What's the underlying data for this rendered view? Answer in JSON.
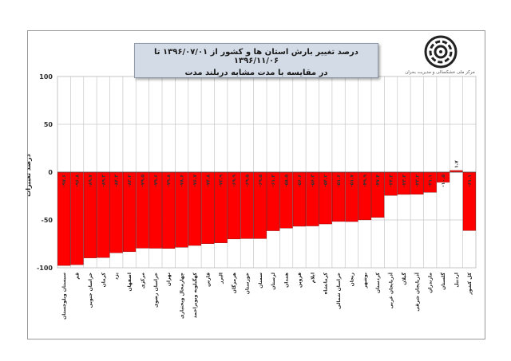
{
  "title": {
    "line1": "درصد تغییر بارش استان ها و کشور از  ۱۳۹۶/۰۷/۰۱ تا ۱۳۹۶/۱۱/۰۶",
    "line2": "در مقایسه با مدت مشابه دربلند مدت"
  },
  "logo_text": "مرکز ملی خشکسالی و مدیریت بحران",
  "chart_data": {
    "type": "bar",
    "title": "درصد تغییر بارش استان ها و کشور از  ۱۳۹۶/۰۷/۰۱ تا ۱۳۹۶/۱۱/۰۶ در مقایسه با مدت مشابه دربلند مدت",
    "xlabel": "",
    "ylabel": "درصد تغییرات",
    "ylim": [
      -100,
      100
    ],
    "yticks": [
      100,
      50,
      0,
      -50,
      -100
    ],
    "grid": true,
    "bar_color": "#ff0000",
    "categories": [
      "سیستان وبلوچستان",
      "قم",
      "خراسان جنوبی",
      "کرمان",
      "یزد",
      "اصفهان",
      "مرکزی",
      "خراسان رضوی",
      "تهران",
      "چهارمحال وبختیاری",
      "کهگیلویه وبویراحمد",
      "فارس",
      "البرز",
      "هرمزگان",
      "خوزستان",
      "سمنان",
      "لرستان",
      "همدان",
      "قزوین",
      "ایلام",
      "کرمانشاه",
      "خراسان شمالی",
      "زنجان",
      "بوشهر",
      "کردستان",
      "آذربایجان غربی",
      "گیلان",
      "آذربایجان شرقی",
      "مازندران",
      "گلستان",
      "اردبیل",
      "کل کشور"
    ],
    "values": [
      -97.6,
      -96.8,
      -89.7,
      -89.3,
      -84.3,
      -83.2,
      -79.5,
      -79.6,
      -79.8,
      -78.6,
      -76.7,
      -74.8,
      -73.9,
      -69.9,
      -69.5,
      -69.5,
      -61.3,
      -58.5,
      -56.6,
      -56.3,
      -54.2,
      -51.6,
      -51.7,
      -49.9,
      -47.4,
      -24.3,
      -23.3,
      -23.2,
      -21.1,
      -10.5,
      1.7,
      -61.1
    ],
    "value_labels": [
      "-۹۷.۶",
      "-۹۶.۸",
      "-۸۹.۷",
      "-۸۹.۳",
      "-۸۴.۳",
      "-۸۳.۲",
      "-۷۹.۵",
      "-۷۹.۶",
      "-۷۹.۸",
      "-۷۸.۶",
      "-۷۶.۷",
      "-۷۴.۸",
      "-۷۳.۹",
      "-۶۹.۹",
      "-۶۹.۵",
      "-۶۹.۵",
      "-۶۱.۳",
      "-۵۸.۵",
      "-۵۶.۶",
      "-۵۶.۳",
      "-۵۴.۲",
      "-۵۱.۶",
      "-۵۱.۷",
      "-۴۹.۹",
      "-۴۷.۴",
      "-۲۴.۳",
      "-۲۳.۳",
      "-۲۳.۲",
      "-۲۱.۱",
      "-۱۰.۵",
      "۱.۷",
      "-۶۱.۱"
    ]
  }
}
